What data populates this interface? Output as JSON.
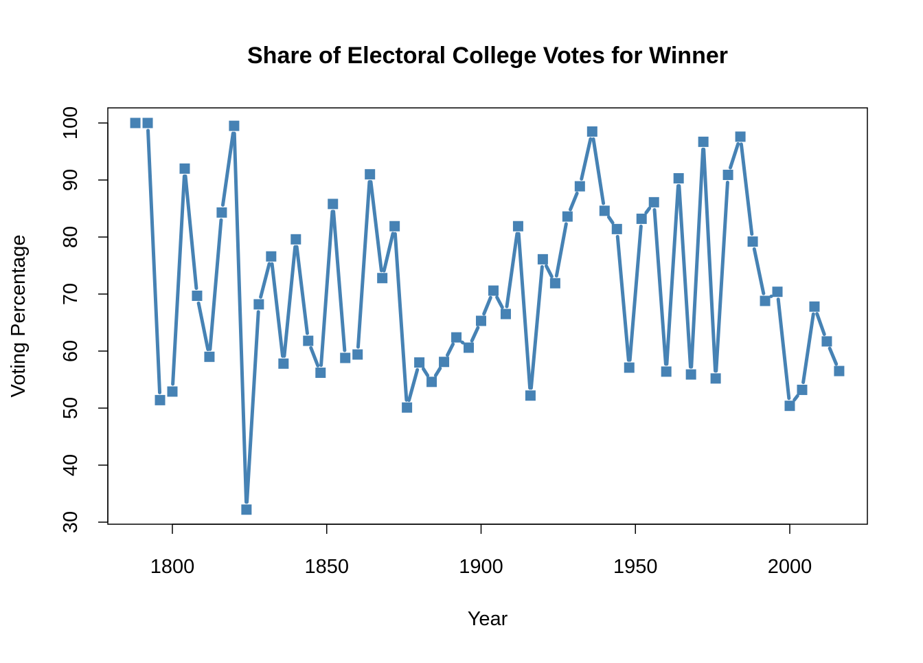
{
  "chart_data": {
    "type": "line",
    "title": "Share of Electoral College Votes for Winner",
    "xlabel": "Year",
    "ylabel": "Voting Percentage",
    "xlim": [
      1780,
      2026
    ],
    "ylim": [
      30,
      100
    ],
    "xticks": [
      1800,
      1850,
      1900,
      1950,
      2000
    ],
    "yticks": [
      30,
      40,
      50,
      60,
      70,
      80,
      90,
      100
    ],
    "grid": false,
    "marker": "filled-square",
    "line_style": "points-and-lines",
    "color": "#4682B4",
    "x": [
      1788,
      1792,
      1796,
      1800,
      1804,
      1808,
      1812,
      1816,
      1820,
      1824,
      1828,
      1832,
      1836,
      1840,
      1844,
      1848,
      1852,
      1856,
      1860,
      1864,
      1868,
      1872,
      1876,
      1880,
      1884,
      1888,
      1892,
      1896,
      1900,
      1904,
      1908,
      1912,
      1916,
      1920,
      1924,
      1928,
      1932,
      1936,
      1940,
      1944,
      1948,
      1952,
      1956,
      1960,
      1964,
      1968,
      1972,
      1976,
      1980,
      1984,
      1988,
      1992,
      1996,
      2000,
      2004,
      2008,
      2012,
      2016
    ],
    "y": [
      100,
      100,
      51.4,
      52.9,
      92.0,
      69.7,
      59.0,
      84.3,
      99.5,
      32.2,
      68.2,
      76.6,
      57.8,
      79.6,
      61.8,
      56.2,
      85.8,
      58.8,
      59.4,
      91.0,
      72.8,
      81.9,
      50.1,
      58.0,
      54.6,
      58.1,
      62.4,
      60.6,
      65.3,
      70.6,
      66.5,
      81.9,
      52.2,
      76.1,
      71.9,
      83.6,
      88.9,
      98.5,
      84.6,
      81.4,
      57.1,
      83.2,
      86.1,
      56.4,
      90.3,
      55.9,
      96.7,
      55.2,
      90.9,
      97.6,
      79.2,
      68.8,
      70.4,
      50.4,
      53.2,
      67.8,
      61.7,
      56.5
    ]
  }
}
